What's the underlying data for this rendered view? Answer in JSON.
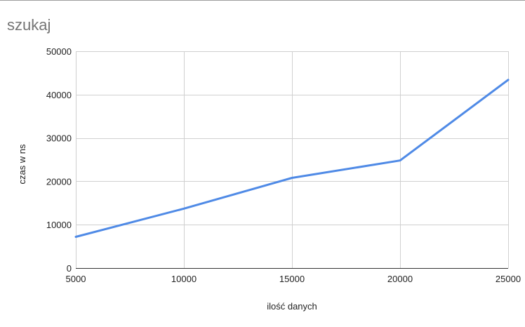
{
  "chart_data": {
    "type": "line",
    "title": "szukaj",
    "xlabel": "ilość danych",
    "ylabel": "czas w ns",
    "xlim": [
      5000,
      25000
    ],
    "ylim": [
      0,
      50000
    ],
    "xticks": [
      5000,
      10000,
      15000,
      20000,
      25000
    ],
    "yticks": [
      0,
      10000,
      20000,
      30000,
      40000,
      50000
    ],
    "grid": true,
    "series": [
      {
        "color": "#4f8ae6",
        "x": [
          5000,
          10000,
          15000,
          20000,
          25000
        ],
        "y": [
          7200,
          13700,
          20800,
          24800,
          43400
        ]
      }
    ]
  }
}
